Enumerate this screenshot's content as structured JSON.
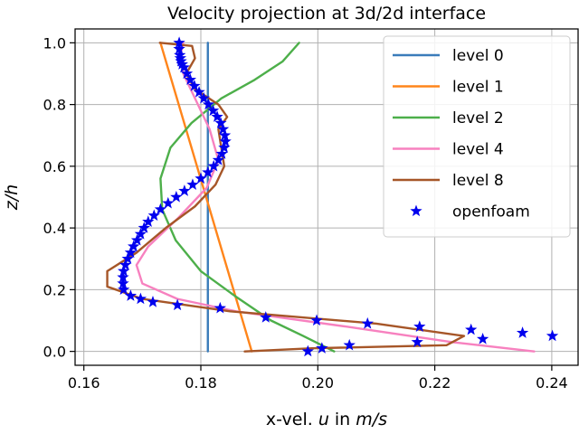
{
  "chart_data": {
    "type": "line",
    "title": "Velocity projection at 3d/2d interface",
    "xlabel_prefix": "x-vel. ",
    "xlabel_var": "u",
    "xlabel_mid": " in ",
    "xlabel_unit": "m/s",
    "ylabel_var": "z/h",
    "xlim": [
      0.1585,
      0.2445
    ],
    "ylim": [
      -0.045,
      1.045
    ],
    "xticks": [
      "0.16",
      "0.18",
      "0.20",
      "0.22",
      "0.24"
    ],
    "yticks": [
      "0.0",
      "0.2",
      "0.4",
      "0.6",
      "0.8",
      "1.0"
    ],
    "grid": true,
    "legend_position": "top-right",
    "series": [
      {
        "name": "level 0",
        "color": "#3a7cba",
        "x": [
          0.1812,
          0.1812
        ],
        "y": [
          0.0,
          1.0
        ]
      },
      {
        "name": "level 1",
        "color": "#ff851b",
        "x": [
          0.1887,
          0.1731
        ],
        "y": [
          0.0,
          1.0
        ]
      },
      {
        "name": "level 2",
        "color": "#4daf4a",
        "x": [
          0.2028,
          0.1975,
          0.192,
          0.1858,
          0.18,
          0.1757,
          0.1734,
          0.1731,
          0.1748,
          0.1784,
          0.1835,
          0.1892,
          0.194,
          0.1968
        ],
        "y": [
          0.0,
          0.05,
          0.1,
          0.18,
          0.26,
          0.36,
          0.46,
          0.56,
          0.66,
          0.74,
          0.82,
          0.88,
          0.94,
          1.0
        ]
      },
      {
        "name": "level 4",
        "color": "#f781bf",
        "x": [
          0.237,
          0.223,
          0.205,
          0.186,
          0.176,
          0.17,
          0.169,
          0.171,
          0.176,
          0.181,
          0.183,
          0.1815,
          0.179,
          0.177,
          0.1765,
          0.177
        ],
        "y": [
          0.0,
          0.03,
          0.08,
          0.13,
          0.17,
          0.22,
          0.28,
          0.34,
          0.43,
          0.53,
          0.62,
          0.72,
          0.82,
          0.9,
          0.96,
          1.0
        ]
      },
      {
        "name": "level 8",
        "color": "#a65628",
        "x": [
          0.1875,
          0.199,
          0.222,
          0.225,
          0.21,
          0.185,
          0.17,
          0.164,
          0.164,
          0.169,
          0.174,
          0.179,
          0.1825,
          0.184,
          0.1835,
          0.183,
          0.1845,
          0.183,
          0.179,
          0.1775,
          0.179,
          0.1785,
          0.173
        ],
        "y": [
          0.0,
          0.01,
          0.02,
          0.05,
          0.09,
          0.13,
          0.17,
          0.21,
          0.26,
          0.32,
          0.4,
          0.47,
          0.54,
          0.6,
          0.66,
          0.72,
          0.76,
          0.8,
          0.85,
          0.9,
          0.95,
          0.99,
          1.0
        ]
      },
      {
        "name": "openfoam",
        "color": "#0000ee",
        "marker": "star",
        "x": [
          0.1983,
          0.2007,
          0.2054,
          0.217,
          0.2282,
          0.2401,
          0.235,
          0.2262,
          0.2174,
          0.2085,
          0.1998,
          0.1911,
          0.1833,
          0.176,
          0.1718,
          0.1697,
          0.168,
          0.1668,
          0.1667,
          0.1667,
          0.1668,
          0.1671,
          0.1675,
          0.168,
          0.1685,
          0.1691,
          0.1697,
          0.1703,
          0.171,
          0.172,
          0.1731,
          0.1744,
          0.1758,
          0.1772,
          0.1786,
          0.18,
          0.1812,
          0.1822,
          0.183,
          0.1836,
          0.184,
          0.1842,
          0.1841,
          0.1838,
          0.1834,
          0.1828,
          0.1821,
          0.1813,
          0.1805,
          0.1797,
          0.1789,
          0.1782,
          0.1776,
          0.1771,
          0.1768,
          0.1766,
          0.1765,
          0.1764,
          0.1763,
          0.1763
        ],
        "y": [
          0.0,
          0.01,
          0.02,
          0.03,
          0.04,
          0.05,
          0.06,
          0.07,
          0.08,
          0.09,
          0.1,
          0.11,
          0.14,
          0.15,
          0.16,
          0.17,
          0.18,
          0.2,
          0.22,
          0.24,
          0.26,
          0.28,
          0.3,
          0.32,
          0.34,
          0.36,
          0.38,
          0.4,
          0.42,
          0.44,
          0.46,
          0.48,
          0.5,
          0.52,
          0.54,
          0.56,
          0.58,
          0.6,
          0.62,
          0.64,
          0.66,
          0.68,
          0.7,
          0.72,
          0.74,
          0.76,
          0.78,
          0.8,
          0.82,
          0.84,
          0.86,
          0.88,
          0.9,
          0.92,
          0.93,
          0.94,
          0.95,
          0.96,
          0.98,
          1.0
        ]
      }
    ]
  }
}
